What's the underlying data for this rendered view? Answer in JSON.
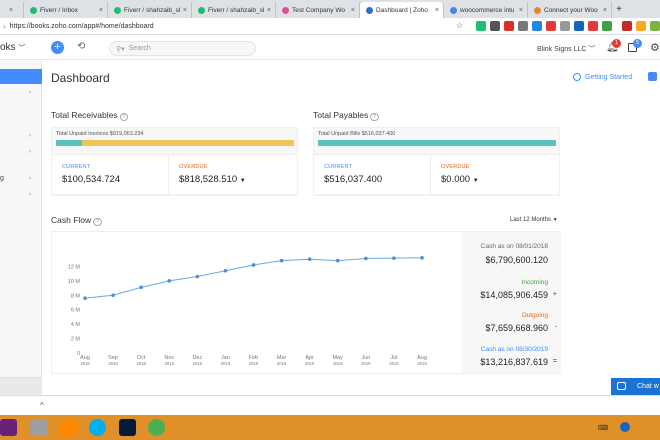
{
  "browser": {
    "tabs": [
      {
        "label": "x",
        "close": "×",
        "color": "#e85d3a",
        "width": 24
      },
      {
        "label": "Fiverr / Inbox",
        "close": "×",
        "color": "#1dbf73",
        "width": 84
      },
      {
        "label": "Fiverr / shahzaib_sh",
        "close": "×",
        "color": "#1dbf73",
        "width": 84
      },
      {
        "label": "Fiverr / shahzaib_sh",
        "close": "×",
        "color": "#1dbf73",
        "width": 84
      },
      {
        "label": "Test Company Wo",
        "close": "×",
        "color": "#e44d9a",
        "width": 84
      },
      {
        "label": "Dashboard | Zoho",
        "close": "×",
        "color": "#2b6fd6",
        "width": 84,
        "active": true
      },
      {
        "label": "woocommerce intu",
        "close": "×",
        "color": "#4285f4",
        "width": 84
      },
      {
        "label": "Connect your Woo",
        "close": "×",
        "color": "#f58220",
        "width": 84
      }
    ],
    "new_tab": "+",
    "url": "https://books.zoho.com/app#/home/dashboard"
  },
  "app": {
    "brand": "oks",
    "search_placeholder": "Search",
    "org": "Blink Signs LLC",
    "notif_count": "1",
    "alert_count": "5"
  },
  "dashboard": {
    "title": "Dashboard",
    "getting_started": "Getting Started",
    "receivables": {
      "heading": "Total Receivables",
      "unpaid": "Total Unpaid Invoices $919,063.234",
      "current_label": "CURRENT",
      "current": "$100,534.724",
      "overdue_label": "OVERDUE",
      "overdue": "$818,528.510",
      "current_fraction": 0.109
    },
    "payables": {
      "heading": "Total Payables",
      "unpaid": "Total Unpaid Bills $516,037.400",
      "current_label": "CURRENT",
      "current": "$516,037.400",
      "overdue_label": "OVERDUE",
      "overdue": "$0.000",
      "current_fraction": 1.0
    },
    "cashflow": {
      "heading": "Cash Flow",
      "range": "Last 12 Months",
      "cash_start_label": "Cash as on 08/01/2018",
      "cash_start": "$6,790,600.120",
      "incoming_label": "Incoming",
      "incoming": "$14,085,906.459",
      "incoming_sign": "+",
      "outgoing_label": "Outgoing",
      "outgoing": "$7,659,668.960",
      "outgoing_sign": "-",
      "cash_end_label": "Cash as on 08/30/2019",
      "cash_end": "$13,216,837.619",
      "cash_end_sign": "="
    },
    "chat": "Chat w"
  },
  "colors": {
    "accent": "#408dfb",
    "receivable_current": "#5bc0be",
    "receivable_overdue": "#f0c65a",
    "overdue_text": "#e4651c",
    "current_text": "#408dfb",
    "incoming_text": "#3ea63b",
    "outgoing_text": "#e4651c",
    "line": "#6ea8d8",
    "taskbar": "#e09028"
  },
  "chart_data": {
    "type": "line",
    "title": "Cash Flow",
    "categories": [
      "Aug\n2018",
      "Sep\n2018",
      "Oct\n2018",
      "Nov\n2018",
      "Dec\n2018",
      "Jan\n2019",
      "Feb\n2019",
      "Mar\n2019",
      "Apr\n2019",
      "May\n2019",
      "Jun\n2019",
      "Jul\n2019",
      "Aug\n2019"
    ],
    "values": [
      7.6,
      8.0,
      9.1,
      10.0,
      10.6,
      11.4,
      12.2,
      12.8,
      13.0,
      12.8,
      13.1,
      13.15,
      13.2
    ],
    "yticks": [
      "0",
      "2 M",
      "4 M",
      "6 M",
      "8 M",
      "10 M",
      "12 M"
    ],
    "ylim": [
      0,
      14
    ],
    "grid": false
  }
}
